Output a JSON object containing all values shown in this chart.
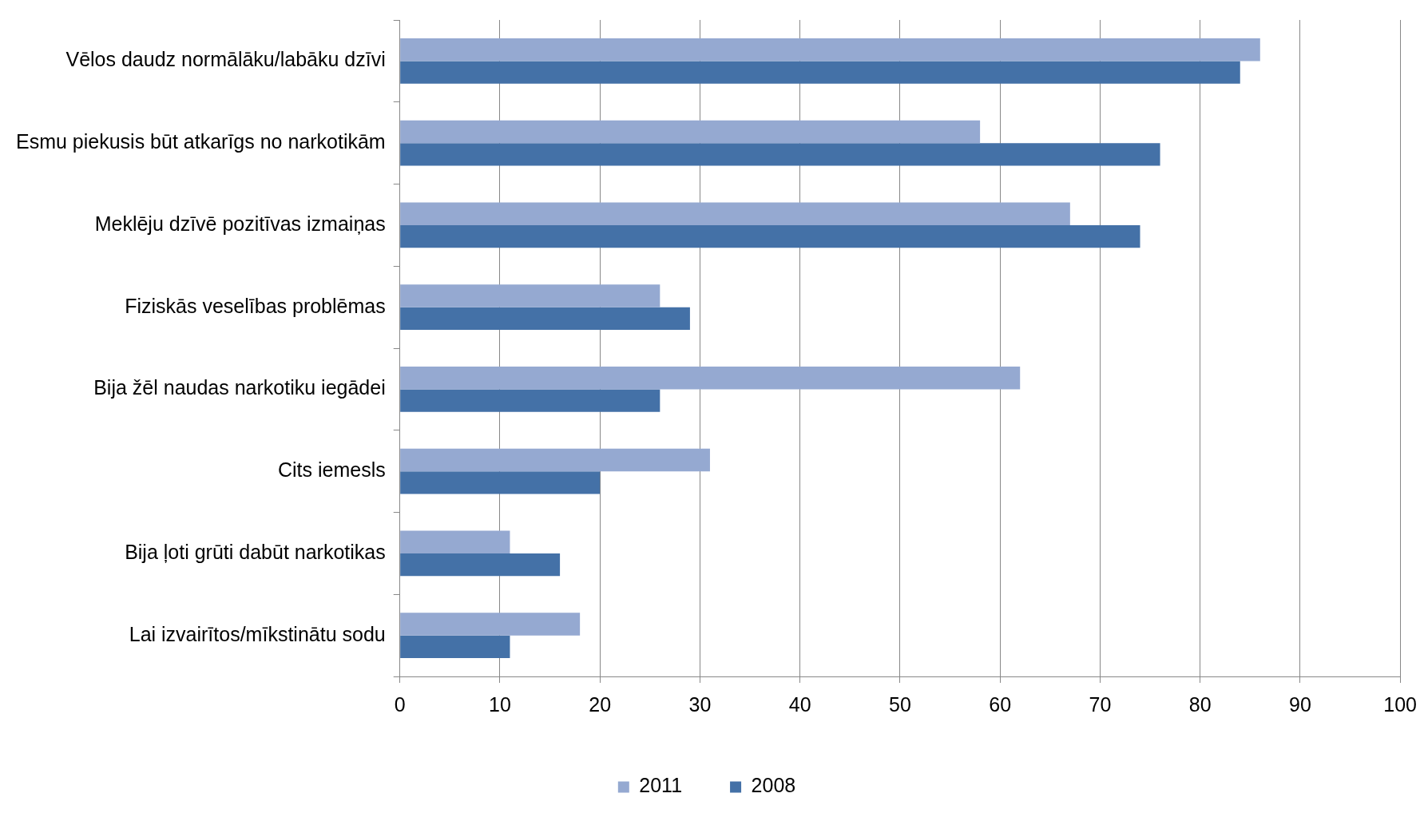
{
  "chart_data": {
    "type": "bar",
    "orientation": "horizontal",
    "categories": [
      "Vēlos daudz normālāku/labāku dzīvi",
      "Esmu piekusis būt atkarīgs no narkotikām",
      "Meklēju dzīvē pozitīvas izmaiņas",
      "Fiziskās veselības problēmas",
      "Bija žēl naudas narkotiku iegādei",
      "Cits iemesls",
      "Bija ļoti grūti dabūt narkotikas",
      "Lai izvairītos/mīkstinātu sodu"
    ],
    "series": [
      {
        "name": "2011",
        "color": "#95a9d1",
        "values": [
          86,
          58,
          67,
          26,
          62,
          31,
          11,
          18
        ]
      },
      {
        "name": "2008",
        "color": "#4471a7",
        "values": [
          84,
          76,
          74,
          29,
          26,
          20,
          16,
          11
        ]
      }
    ],
    "xlim": [
      0,
      100
    ],
    "xticks": [
      0,
      10,
      20,
      30,
      40,
      50,
      60,
      70,
      80,
      90,
      100
    ],
    "grid": "x",
    "legend": "bottom"
  }
}
